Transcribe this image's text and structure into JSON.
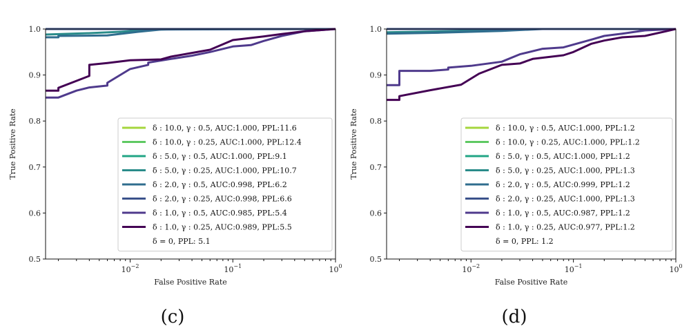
{
  "chart_data": [
    {
      "type": "line",
      "title": "",
      "caption": "(c)",
      "xlabel": "False Positive Rate",
      "ylabel": "True Positive Rate",
      "x_scale": "log",
      "xlim": [
        0.0015,
        1
      ],
      "ylim": [
        0.5,
        1.0
      ],
      "x_ticks": [
        {
          "value": 0.01,
          "base": "10",
          "exp": "−2"
        },
        {
          "value": 0.1,
          "base": "10",
          "exp": "−1"
        },
        {
          "value": 1,
          "base": "10",
          "exp": "0"
        }
      ],
      "y_ticks": [
        "0.5",
        "0.6",
        "0.7",
        "0.8",
        "0.9",
        "1.0"
      ],
      "grid": false,
      "legend_position": "lower-right",
      "series": [
        {
          "name": "δ : 10.0, γ : 0.5, AUC:1.000, PPL:11.6",
          "color": "#a5d63c",
          "points": [
            [
              0.0015,
              1.0
            ],
            [
              1,
              1.0
            ]
          ]
        },
        {
          "name": "δ : 10.0, γ : 0.25, AUC:1.000, PPL:12.4",
          "color": "#5ec962",
          "points": [
            [
              0.0015,
              1.0
            ],
            [
              1,
              1.0
            ]
          ]
        },
        {
          "name": "δ : 5.0, γ : 0.5, AUC:1.000, PPL:9.1",
          "color": "#21a585",
          "points": [
            [
              0.0015,
              1.0
            ],
            [
              1,
              1.0
            ]
          ]
        },
        {
          "name": "δ : 5.0, γ : 0.25, AUC:1.000, PPL:10.7",
          "color": "#2a8c8a",
          "points": [
            [
              0.0015,
              0.988
            ],
            [
              0.004,
              0.991
            ],
            [
              0.008,
              0.994
            ],
            [
              0.015,
              0.998
            ],
            [
              0.03,
              1.0
            ],
            [
              1,
              1.0
            ]
          ]
        },
        {
          "name": "δ : 2.0, γ : 0.5, AUC:0.998, PPL:6.2",
          "color": "#2f6d8e",
          "points": [
            [
              0.0015,
              0.982
            ],
            [
              0.002,
              0.982
            ],
            [
              0.002,
              0.985
            ],
            [
              0.006,
              0.986
            ],
            [
              0.012,
              0.994
            ],
            [
              0.02,
              0.999
            ],
            [
              1,
              1.0
            ]
          ]
        },
        {
          "name": "δ : 2.0, γ : 0.25, AUC:0.998, PPL:6.6",
          "color": "#3b528b",
          "points": [
            [
              0.0015,
              1.0
            ],
            [
              1,
              1.0
            ]
          ]
        },
        {
          "name": "δ : 1.0, γ : 0.5, AUC:0.985, PPL:5.4",
          "color": "#4f3a8c",
          "points": [
            [
              0.0015,
              0.851
            ],
            [
              0.002,
              0.851
            ],
            [
              0.003,
              0.866
            ],
            [
              0.004,
              0.873
            ],
            [
              0.006,
              0.877
            ],
            [
              0.006,
              0.883
            ],
            [
              0.01,
              0.913
            ],
            [
              0.015,
              0.922
            ],
            [
              0.015,
              0.927
            ],
            [
              0.025,
              0.935
            ],
            [
              0.04,
              0.942
            ],
            [
              0.06,
              0.95
            ],
            [
              0.1,
              0.962
            ],
            [
              0.15,
              0.965
            ],
            [
              0.2,
              0.974
            ],
            [
              0.3,
              0.985
            ],
            [
              0.5,
              0.995
            ],
            [
              1,
              1.0
            ]
          ]
        },
        {
          "name": "δ : 1.0, γ : 0.25, AUC:0.989, PPL:5.5",
          "color": "#440154",
          "points": [
            [
              0.0015,
              0.866
            ],
            [
              0.002,
              0.866
            ],
            [
              0.002,
              0.872
            ],
            [
              0.004,
              0.898
            ],
            [
              0.004,
              0.922
            ],
            [
              0.006,
              0.926
            ],
            [
              0.01,
              0.932
            ],
            [
              0.02,
              0.934
            ],
            [
              0.025,
              0.94
            ],
            [
              0.04,
              0.948
            ],
            [
              0.06,
              0.955
            ],
            [
              0.1,
              0.976
            ],
            [
              0.2,
              0.984
            ],
            [
              0.3,
              0.989
            ],
            [
              0.5,
              0.995
            ],
            [
              1,
              1.0
            ]
          ]
        }
      ],
      "legend_extra": "δ = 0, PPL: 5.1"
    },
    {
      "type": "line",
      "title": "",
      "caption": "(d)",
      "xlabel": "False Positive Rate",
      "ylabel": "True Positive Rate",
      "x_scale": "log",
      "xlim": [
        0.0015,
        1
      ],
      "ylim": [
        0.5,
        1.0
      ],
      "x_ticks": [
        {
          "value": 0.01,
          "base": "10",
          "exp": "−2"
        },
        {
          "value": 0.1,
          "base": "10",
          "exp": "−1"
        },
        {
          "value": 1,
          "base": "10",
          "exp": "0"
        }
      ],
      "y_ticks": [
        "0.5",
        "0.6",
        "0.7",
        "0.8",
        "0.9",
        "1.0"
      ],
      "grid": false,
      "legend_position": "lower-right",
      "series": [
        {
          "name": "δ : 10.0, γ : 0.5, AUC:1.000, PPL:1.2",
          "color": "#a5d63c",
          "points": [
            [
              0.0015,
              1.0
            ],
            [
              1,
              1.0
            ]
          ]
        },
        {
          "name": "δ : 10.0, γ : 0.25, AUC:1.000, PPL:1.2",
          "color": "#5ec962",
          "points": [
            [
              0.0015,
              1.0
            ],
            [
              1,
              1.0
            ]
          ]
        },
        {
          "name": "δ : 5.0, γ : 0.5, AUC:1.000, PPL:1.2",
          "color": "#21a585",
          "points": [
            [
              0.0015,
              1.0
            ],
            [
              1,
              1.0
            ]
          ]
        },
        {
          "name": "δ : 5.0, γ : 0.25, AUC:1.000, PPL:1.3",
          "color": "#2a8c8a",
          "points": [
            [
              0.0015,
              0.993
            ],
            [
              0.01,
              0.996
            ],
            [
              0.03,
              1.0
            ],
            [
              1,
              1.0
            ]
          ]
        },
        {
          "name": "δ : 2.0, γ : 0.5, AUC:0.999, PPL:1.2",
          "color": "#2f6d8e",
          "points": [
            [
              0.0015,
              0.99
            ],
            [
              0.005,
              0.992
            ],
            [
              0.02,
              0.996
            ],
            [
              0.05,
              1.0
            ],
            [
              1,
              1.0
            ]
          ]
        },
        {
          "name": "δ : 2.0, γ : 0.25, AUC:1.000, PPL:1.3",
          "color": "#3b528b",
          "points": [
            [
              0.0015,
              1.0
            ],
            [
              1,
              1.0
            ]
          ]
        },
        {
          "name": "δ : 1.0, γ : 0.5, AUC:0.987, PPL:1.2",
          "color": "#4f3a8c",
          "points": [
            [
              0.0015,
              0.878
            ],
            [
              0.002,
              0.878
            ],
            [
              0.002,
              0.909
            ],
            [
              0.004,
              0.909
            ],
            [
              0.006,
              0.912
            ],
            [
              0.006,
              0.916
            ],
            [
              0.01,
              0.92
            ],
            [
              0.02,
              0.929
            ],
            [
              0.03,
              0.945
            ],
            [
              0.05,
              0.957
            ],
            [
              0.08,
              0.96
            ],
            [
              0.1,
              0.966
            ],
            [
              0.15,
              0.977
            ],
            [
              0.2,
              0.985
            ],
            [
              0.3,
              0.99
            ],
            [
              0.5,
              0.997
            ],
            [
              1,
              1.0
            ]
          ]
        },
        {
          "name": "δ : 1.0, γ : 0.25, AUC:0.977, PPL:1.2",
          "color": "#440154",
          "points": [
            [
              0.0015,
              0.846
            ],
            [
              0.002,
              0.846
            ],
            [
              0.002,
              0.854
            ],
            [
              0.004,
              0.867
            ],
            [
              0.008,
              0.879
            ],
            [
              0.012,
              0.903
            ],
            [
              0.02,
              0.922
            ],
            [
              0.03,
              0.925
            ],
            [
              0.04,
              0.935
            ],
            [
              0.08,
              0.943
            ],
            [
              0.1,
              0.95
            ],
            [
              0.15,
              0.968
            ],
            [
              0.2,
              0.975
            ],
            [
              0.3,
              0.982
            ],
            [
              0.5,
              0.985
            ],
            [
              0.8,
              0.995
            ],
            [
              1,
              1.0
            ]
          ]
        }
      ],
      "legend_extra": "δ = 0, PPL: 1.2"
    }
  ]
}
